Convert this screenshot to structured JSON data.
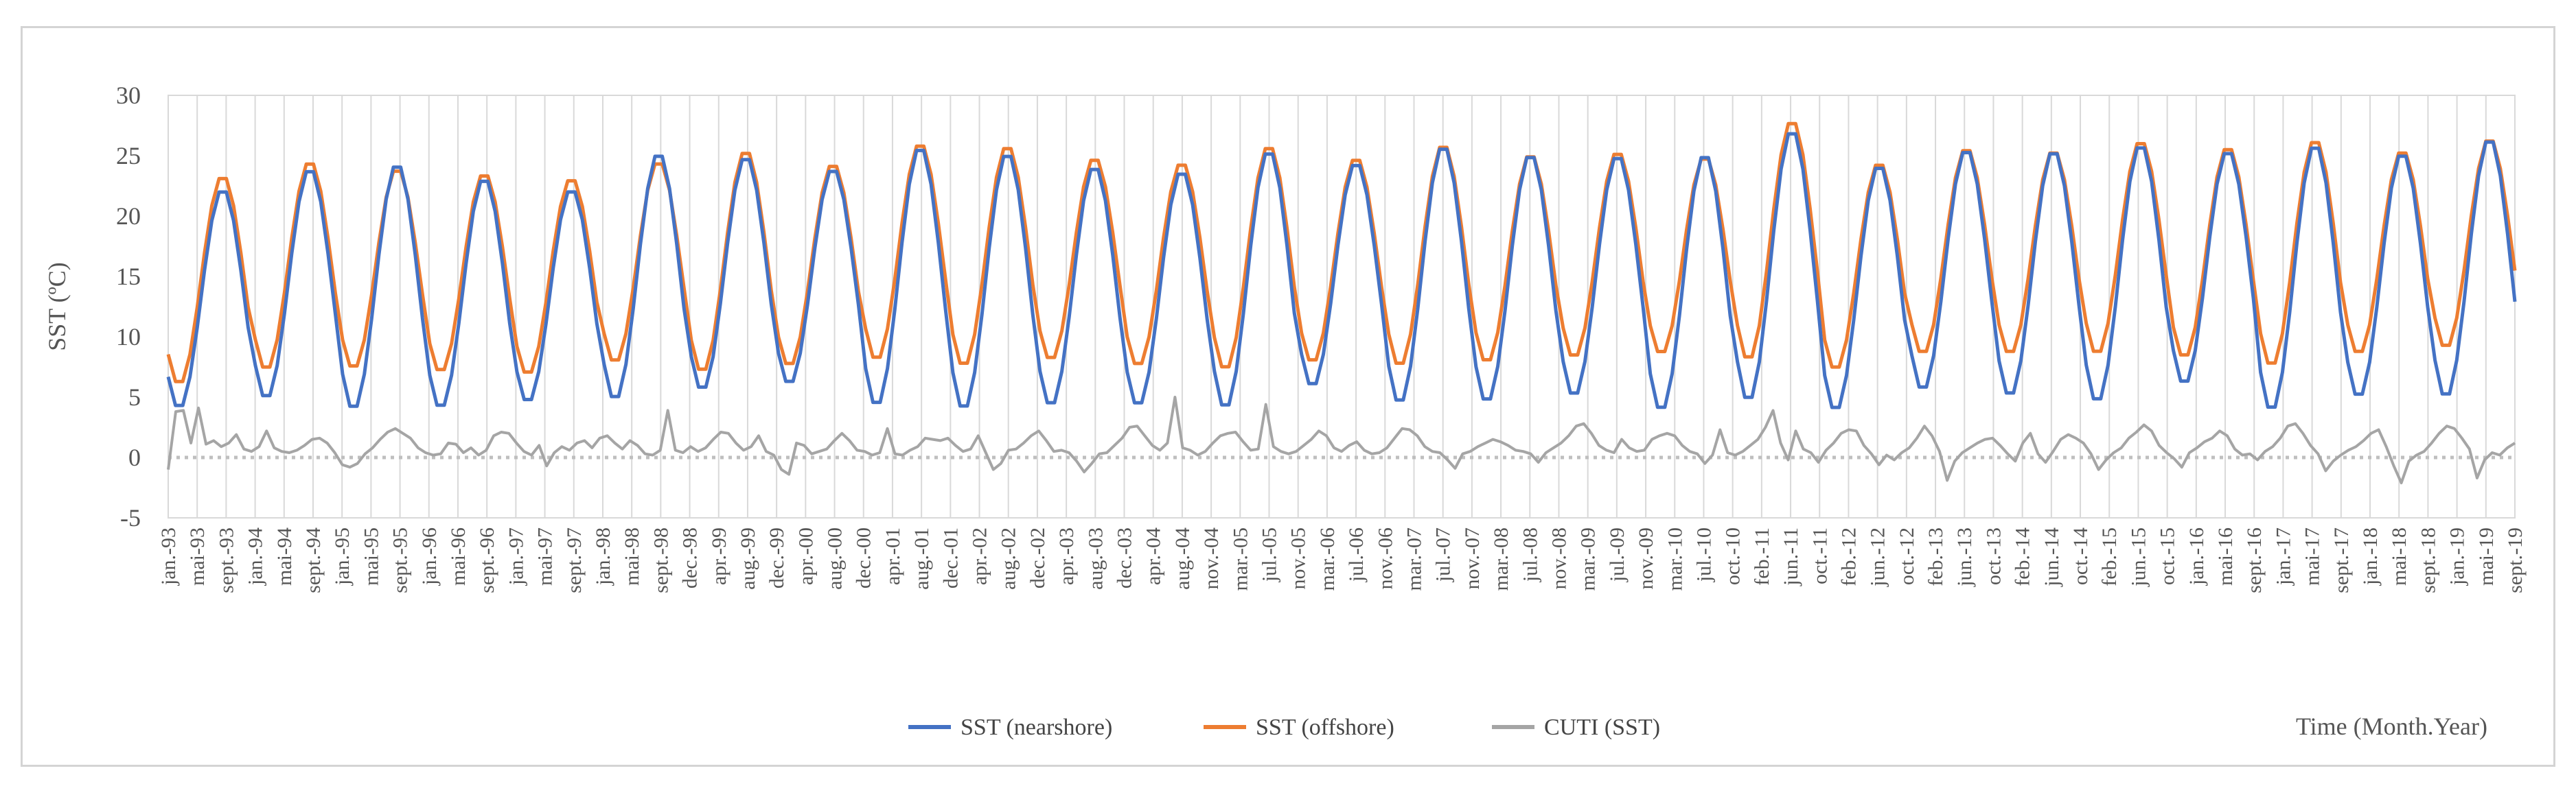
{
  "chart_data": {
    "type": "line",
    "title": "",
    "ylabel": "SST (ºC)",
    "xlabel": "Time (Month.Year)",
    "ylim": [
      -5,
      30
    ],
    "yticks": [
      -5,
      0,
      5,
      10,
      15,
      20,
      25,
      30
    ],
    "grid": "vertical",
    "legend": "bottom",
    "x_tick_labels": [
      "jan.-93",
      "mai-93",
      "sept.-93",
      "jan.-94",
      "mai-94",
      "sept.-94",
      "jan.-95",
      "mai-95",
      "sept.-95",
      "jan.-96",
      "mai-96",
      "sept.-96",
      "jan.-97",
      "mai-97",
      "sept.-97",
      "jan.-98",
      "mai-98",
      "sept.-98",
      "dec.-98",
      "apr.-99",
      "aug.-99",
      "dec.-99",
      "apr.-00",
      "aug.-00",
      "dec.-00",
      "apr.-01",
      "aug.-01",
      "dec.-01",
      "apr.-02",
      "aug.-02",
      "dec.-02",
      "apr.-03",
      "aug.-03",
      "dec.-03",
      "apr.-04",
      "aug.-04",
      "nov.-04",
      "mar.-05",
      "jul.-05",
      "nov.-05",
      "mar.-06",
      "jul.-06",
      "nov.-06",
      "mar.-07",
      "jul.-07",
      "nov.-07",
      "mar.-08",
      "jul.-08",
      "nov.-08",
      "mar.-09",
      "jul.-09",
      "nov.-09",
      "mar.-10",
      "jul.-10",
      "oct.-10",
      "feb.-11",
      "jun.-11",
      "oct.-11",
      "feb.-12",
      "jun.-12",
      "oct.-12",
      "feb.-13",
      "jun.-13",
      "oct.-13",
      "feb.-14",
      "jun.-14",
      "oct.-14",
      "feb.-15",
      "jun.-15",
      "oct.-15",
      "jan.-16",
      "mai-16",
      "sept.-16",
      "jan.-17",
      "mai-17",
      "sept.-17",
      "jan.-18",
      "mai-18",
      "sept.-18",
      "jan.-19",
      "mai-19",
      "sept.-19"
    ],
    "series": [
      {
        "name": "SST (nearshore)",
        "color": "#4472c4",
        "yearly_max": [
          22.3,
          24.0,
          24.4,
          23.2,
          22.3,
          25.3,
          25.0,
          24.0,
          25.8,
          25.3,
          24.2,
          23.8,
          25.5,
          24.5,
          25.9,
          25.2,
          25.1,
          25.2,
          27.2,
          24.3,
          25.6,
          25.5,
          26.0,
          25.5,
          26.0,
          25.3,
          26.5
        ],
        "yearly_min": [
          4.0,
          4.8,
          3.9,
          4.0,
          4.5,
          4.7,
          5.5,
          6.0,
          4.2,
          3.9,
          4.2,
          4.2,
          4.0,
          5.8,
          4.4,
          4.5,
          5.0,
          3.8,
          4.6,
          3.8,
          5.5,
          5.0,
          4.5,
          6.0,
          3.8,
          4.9,
          4.9
        ]
      },
      {
        "name": "SST (offshore)",
        "color": "#ed7d31",
        "yearly_max": [
          23.4,
          24.6,
          24.0,
          23.6,
          23.2,
          24.6,
          25.5,
          24.4,
          26.1,
          25.9,
          24.9,
          24.5,
          25.9,
          24.9,
          26.0,
          25.2,
          25.4,
          25.0,
          28.0,
          24.5,
          25.7,
          25.5,
          26.3,
          25.8,
          26.4,
          25.5,
          26.5
        ],
        "yearly_min": [
          6.0,
          7.2,
          7.3,
          7.0,
          6.8,
          7.8,
          7.0,
          7.5,
          8.0,
          7.5,
          8.0,
          7.5,
          7.2,
          7.8,
          7.5,
          7.8,
          8.2,
          8.5,
          8.0,
          7.2,
          8.5,
          8.5,
          8.5,
          8.2,
          7.5,
          8.5,
          9.0
        ]
      },
      {
        "name": "CUTI (SST)",
        "color": "#a5a5a5",
        "values": [
          -1.0,
          3.8,
          3.9,
          1.2,
          4.1,
          1.1,
          1.4,
          0.9,
          1.2,
          1.9,
          0.7,
          0.5,
          0.9,
          2.2,
          0.8,
          0.5,
          0.4,
          0.6,
          1.0,
          1.5,
          1.6,
          1.2,
          0.4,
          -0.6,
          -0.8,
          -0.5,
          0.3,
          0.8,
          1.5,
          2.1,
          2.4,
          2.0,
          1.6,
          0.8,
          0.4,
          0.2,
          0.3,
          1.2,
          1.1,
          0.4,
          0.8,
          0.2,
          0.6,
          1.8,
          2.1,
          2.0,
          1.2,
          0.5,
          0.2,
          1.0,
          -0.7,
          0.4,
          0.9,
          0.6,
          1.2,
          1.4,
          0.8,
          1.6,
          1.8,
          1.2,
          0.7,
          1.4,
          1.0,
          0.3,
          0.2,
          0.6,
          3.9,
          0.6,
          0.4,
          0.9,
          0.5,
          0.8,
          1.5,
          2.1,
          2.0,
          1.2,
          0.6,
          0.9,
          1.8,
          0.5,
          0.2,
          -1.0,
          -1.4,
          1.2,
          1.0,
          0.3,
          0.5,
          0.7,
          1.4,
          2.0,
          1.4,
          0.6,
          0.5,
          0.2,
          0.4,
          2.4,
          0.3,
          0.2,
          0.6,
          0.9,
          1.6,
          1.5,
          1.4,
          1.6,
          1.0,
          0.5,
          0.7,
          1.8,
          0.4,
          -1.0,
          -0.5,
          0.6,
          0.7,
          1.2,
          1.8,
          2.2,
          1.4,
          0.5,
          0.6,
          0.4,
          -0.3,
          -1.2,
          -0.5,
          0.3,
          0.4,
          1.0,
          1.6,
          2.5,
          2.6,
          1.8,
          1.0,
          0.6,
          1.2,
          5.0,
          0.8,
          0.6,
          0.2,
          0.5,
          1.2,
          1.8,
          2.0,
          2.1,
          1.3,
          0.6,
          0.7,
          4.4,
          0.9,
          0.5,
          0.3,
          0.5,
          1.0,
          1.5,
          2.2,
          1.8,
          0.8,
          0.5,
          1.0,
          1.3,
          0.6,
          0.3,
          0.4,
          0.8,
          1.6,
          2.4,
          2.3,
          1.8,
          0.9,
          0.5,
          0.4,
          -0.2,
          -0.9,
          0.3,
          0.5,
          0.9,
          1.2,
          1.5,
          1.3,
          1.0,
          0.6,
          0.5,
          0.3,
          -0.4,
          0.4,
          0.8,
          1.2,
          1.8,
          2.6,
          2.8,
          2.0,
          1.0,
          0.6,
          0.4,
          1.5,
          0.8,
          0.5,
          0.6,
          1.5,
          1.8,
          2.0,
          1.8,
          1.0,
          0.5,
          0.3,
          -0.5,
          0.2,
          2.3,
          0.4,
          0.2,
          0.5,
          1.0,
          1.5,
          2.5,
          3.9,
          1.2,
          -0.2,
          2.2,
          0.7,
          0.4,
          -0.4,
          0.6,
          1.2,
          2.0,
          2.3,
          2.2,
          1.0,
          0.3,
          -0.6,
          0.2,
          -0.2,
          0.4,
          0.8,
          1.6,
          2.6,
          1.8,
          0.5,
          -1.9,
          -0.3,
          0.4,
          0.8,
          1.2,
          1.5,
          1.6,
          1.0,
          0.3,
          -0.3,
          1.2,
          2.0,
          0.3,
          -0.4,
          0.5,
          1.5,
          1.9,
          1.6,
          1.2,
          0.3,
          -1.0,
          -0.2,
          0.4,
          0.8,
          1.6,
          2.1,
          2.7,
          2.2,
          1.0,
          0.4,
          -0.1,
          -0.8,
          0.4,
          0.8,
          1.3,
          1.6,
          2.2,
          1.8,
          0.7,
          0.2,
          0.3,
          -0.2,
          0.5,
          0.9,
          1.6,
          2.6,
          2.8,
          2.0,
          1.0,
          0.3,
          -1.1,
          -0.3,
          0.2,
          0.6,
          0.9,
          1.4,
          2.0,
          2.3,
          0.9,
          -0.7,
          -2.1,
          -0.3,
          0.2,
          0.5,
          1.2,
          2.0,
          2.6,
          2.4,
          1.6,
          0.7,
          -1.7,
          -0.2,
          0.4,
          0.2,
          0.8,
          1.2
        ]
      }
    ]
  }
}
